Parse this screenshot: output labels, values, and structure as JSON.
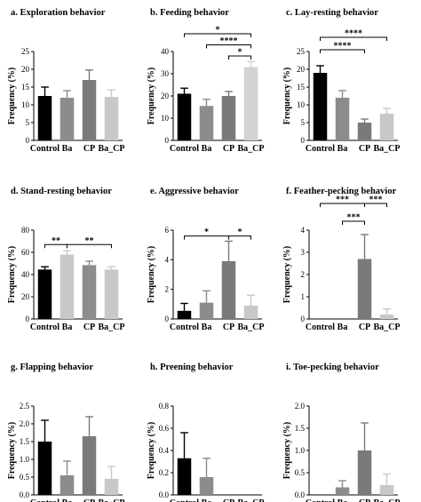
{
  "chart_data": [
    {
      "type": "bar",
      "title": "a.   Exploration behavior",
      "ylabel": "Frequency (%)",
      "categories": [
        "Control",
        "Ba",
        "CP",
        "Ba_CP"
      ],
      "values": [
        12.5,
        12.0,
        17.0,
        12.2
      ],
      "errors": [
        2.5,
        2.0,
        2.8,
        2.0
      ],
      "ylim": [
        0,
        25
      ],
      "yticks": [
        "0",
        "5",
        "10",
        "15",
        "20",
        "25"
      ],
      "colors": [
        "#000000",
        "#8c8c8c",
        "#7a7a7a",
        "#c8c8c8"
      ],
      "significance": []
    },
    {
      "type": "bar",
      "title": "b.      Feeding behavior",
      "ylabel": "Frequency (%)",
      "categories": [
        "Control",
        "Ba",
        "CP",
        "Ba_CP"
      ],
      "values": [
        21.0,
        15.5,
        20.0,
        33.0
      ],
      "errors": [
        2.5,
        3.0,
        2.0,
        2.5
      ],
      "ylim": [
        0,
        40
      ],
      "yticks": [
        "0",
        "10",
        "20",
        "30",
        "40"
      ],
      "colors": [
        "#000000",
        "#8c8c8c",
        "#7a7a7a",
        "#d3d3d3"
      ],
      "significance": [
        {
          "from": 0,
          "to": 3,
          "level": 48,
          "label": "*"
        },
        {
          "from": 1,
          "to": 3,
          "level": 43,
          "label": "****"
        },
        {
          "from": 2,
          "to": 3,
          "level": 38,
          "label": "*"
        }
      ]
    },
    {
      "type": "bar",
      "title": "c.   Lay-resting behavior",
      "ylabel": "Frequency (%)",
      "categories": [
        "Control",
        "Ba",
        "CP",
        "Ba_CP"
      ],
      "values": [
        19.0,
        12.0,
        5.0,
        7.5
      ],
      "errors": [
        2.0,
        2.0,
        1.0,
        1.5
      ],
      "ylim": [
        0,
        25
      ],
      "yticks": [
        "0",
        "5",
        "10",
        "15",
        "20",
        "25"
      ],
      "colors": [
        "#000000",
        "#8c8c8c",
        "#7a7a7a",
        "#c8c8c8"
      ],
      "significance": [
        {
          "from": 0,
          "to": 3,
          "level": 29,
          "label": "****"
        },
        {
          "from": 0,
          "to": 2,
          "level": 25.5,
          "label": "****"
        }
      ]
    },
    {
      "type": "bar",
      "title": "d.   Stand-resting behavior",
      "ylabel": "Frequency (%)",
      "categories": [
        "Control",
        "Ba",
        "CP",
        "Ba_CP"
      ],
      "values": [
        44.5,
        58.0,
        48.5,
        44.5
      ],
      "errors": [
        2.5,
        3.5,
        3.5,
        2.5
      ],
      "ylim": [
        0,
        80
      ],
      "yticks": [
        "0",
        "20",
        "40",
        "60",
        "80"
      ],
      "colors": [
        "#000000",
        "#c8c8c8",
        "#8c8c8c",
        "#c8c8c8"
      ],
      "significance": [
        {
          "from": 0,
          "to": 1,
          "level": 67,
          "label": "**"
        },
        {
          "from": 1,
          "to": 3,
          "level": 67,
          "label": "**"
        }
      ]
    },
    {
      "type": "bar",
      "title": "e.   Aggressive behavior",
      "ylabel": "Frequency (%)",
      "categories": [
        "Control",
        "Ba",
        "CP",
        "Ba_CP"
      ],
      "values": [
        0.55,
        1.1,
        3.9,
        0.9
      ],
      "errors": [
        0.5,
        0.8,
        1.35,
        0.7
      ],
      "ylim": [
        0,
        6
      ],
      "yticks": [
        "0",
        "2",
        "4",
        "6"
      ],
      "colors": [
        "#000000",
        "#8c8c8c",
        "#7a7a7a",
        "#c8c8c8"
      ],
      "significance": [
        {
          "from": 0,
          "to": 2,
          "level": 5.6,
          "label": "*"
        },
        {
          "from": 2,
          "to": 3,
          "level": 5.6,
          "label": "*"
        }
      ]
    },
    {
      "type": "bar",
      "title": "f.   Feather-pecking behavior",
      "ylabel": "Frequency (%)",
      "categories": [
        "Control",
        "Ba",
        "CP",
        "Ba_CP"
      ],
      "values": [
        0.0,
        0.0,
        2.7,
        0.2
      ],
      "errors": [
        0.0,
        0.0,
        1.1,
        0.25
      ],
      "ylim": [
        0,
        4
      ],
      "yticks": [
        "0",
        "1",
        "2",
        "3",
        "4"
      ],
      "colors": [
        "#000000",
        "#8c8c8c",
        "#7a7a7a",
        "#c8c8c8"
      ],
      "significance": [
        {
          "from": 0,
          "to": 2,
          "level": 5.2,
          "label": "***"
        },
        {
          "from": 2,
          "to": 3,
          "level": 5.2,
          "label": "***"
        },
        {
          "from": 1,
          "to": 2,
          "level": 4.4,
          "label": "***"
        }
      ]
    },
    {
      "type": "bar",
      "title": "g.      Flapping behavior",
      "ylabel": "Frequency (%)",
      "categories": [
        "Control",
        "Ba",
        "CP",
        "Ba_CP"
      ],
      "values": [
        1.5,
        0.55,
        1.65,
        0.45
      ],
      "errors": [
        0.6,
        0.4,
        0.55,
        0.35
      ],
      "ylim": [
        0,
        2.5
      ],
      "yticks": [
        "0.0",
        "0.5",
        "1.0",
        "1.5",
        "2.0",
        "2.5"
      ],
      "colors": [
        "#000000",
        "#8c8c8c",
        "#7a7a7a",
        "#c8c8c8"
      ],
      "significance": []
    },
    {
      "type": "bar",
      "title": "h.      Preening behavior",
      "ylabel": "Frequency (%)",
      "categories": [
        "Control",
        "Ba",
        "CP",
        "Ba_CP"
      ],
      "values": [
        0.33,
        0.16,
        0.0,
        0.0
      ],
      "errors": [
        0.23,
        0.17,
        0.0,
        0.0
      ],
      "ylim": [
        0,
        0.8
      ],
      "yticks": [
        "0.0",
        "0.2",
        "0.4",
        "0.6",
        "0.8"
      ],
      "colors": [
        "#000000",
        "#8c8c8c",
        "#7a7a7a",
        "#c8c8c8"
      ],
      "significance": []
    },
    {
      "type": "bar",
      "title": "i.   Toe-pecking behavior",
      "ylabel": "Frequency (%)",
      "categories": [
        "Control",
        "Ba",
        "CP",
        "Ba_CP"
      ],
      "values": [
        0.0,
        0.17,
        1.0,
        0.22
      ],
      "errors": [
        0.0,
        0.15,
        0.62,
        0.25
      ],
      "ylim": [
        0,
        2.0
      ],
      "yticks": [
        "0.0",
        "0.5",
        "1.0",
        "1.5",
        "2.0"
      ],
      "colors": [
        "#000000",
        "#8c8c8c",
        "#7a7a7a",
        "#c8c8c8"
      ],
      "significance": []
    }
  ]
}
